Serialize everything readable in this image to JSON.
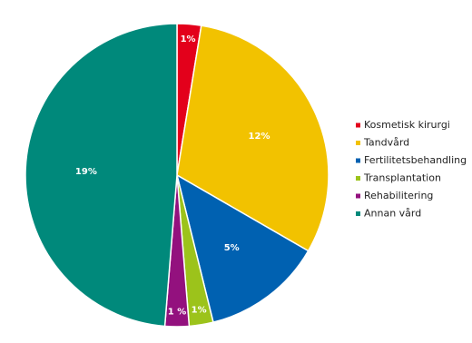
{
  "chart_data": {
    "type": "pie",
    "categories": [
      "Kosmetisk kirurgi",
      "Tandvård",
      "Fertilitetsbehandling",
      "Transplantation",
      "Rehabilitering",
      "Annan vård"
    ],
    "values": [
      1,
      12,
      5,
      1,
      1,
      19
    ],
    "value_labels": [
      "1%",
      "12%",
      "5%",
      "1%",
      "1 %",
      "19%"
    ],
    "colors": [
      "#e3001b",
      "#f2c200",
      "#0061b1",
      "#9cc31b",
      "#93117e",
      "#00897b"
    ],
    "legend": "right"
  }
}
